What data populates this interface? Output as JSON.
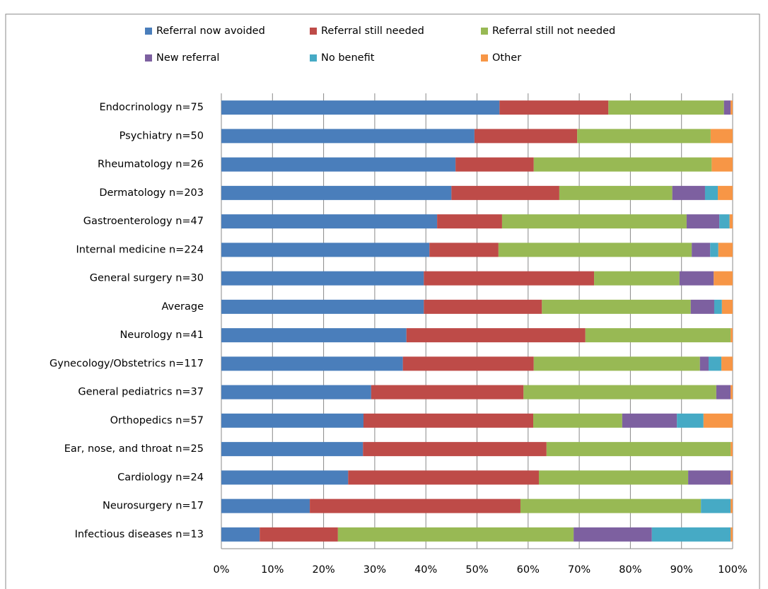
{
  "chart_data": {
    "type": "stacked-bar-horizontal",
    "categories": [
      "Endocrinology n=75",
      "Psychiatry n=50",
      "Rheumatology n=26",
      "Dermatology n=203",
      "Gastroenterology n=47",
      "Internal medicine n=224",
      "General surgery n=30",
      "Average",
      "Neurology n=41",
      "Gynecology/Obstetrics n=117",
      "General pediatrics n=37",
      "Orthopedics n=57",
      "Ear, nose, and throat n=25",
      "Cardiology n=24",
      "Neurosurgery n=17",
      "Infectious diseases n=13"
    ],
    "series": [
      {
        "name": "Referral now avoided",
        "color": "#4a7ebb",
        "values": [
          54.4,
          49.5,
          45.8,
          45.0,
          42.2,
          40.7,
          39.6,
          39.6,
          36.2,
          35.5,
          29.3,
          27.8,
          27.7,
          24.8,
          17.3,
          7.5
        ]
      },
      {
        "name": "Referral still needed",
        "color": "#be4b48",
        "values": [
          21.3,
          20.1,
          15.3,
          21.1,
          12.7,
          13.5,
          33.3,
          23.1,
          35.0,
          25.6,
          29.8,
          33.2,
          35.9,
          37.3,
          41.2,
          15.3
        ]
      },
      {
        "name": "Referral still not needed",
        "color": "#98b954",
        "values": [
          22.6,
          26.1,
          34.8,
          22.1,
          36.1,
          37.8,
          16.7,
          29.1,
          28.4,
          32.5,
          37.7,
          17.4,
          36.0,
          29.2,
          35.3,
          46.1
        ]
      },
      {
        "name": "New referral",
        "color": "#7d60a0",
        "values": [
          1.3,
          0,
          0,
          6.4,
          6.4,
          3.6,
          6.7,
          4.6,
          0,
          1.7,
          2.8,
          10.7,
          0,
          8.3,
          0,
          15.3
        ]
      },
      {
        "name": "No benefit",
        "color": "#46aac5",
        "values": [
          0,
          0,
          0,
          2.5,
          2.0,
          1.6,
          0,
          1.5,
          0,
          2.5,
          0,
          5.2,
          0,
          0,
          5.8,
          15.4
        ]
      },
      {
        "name": "Other",
        "color": "#f79646",
        "values": [
          0.4,
          4.3,
          4.1,
          2.9,
          0.6,
          2.8,
          3.7,
          2.1,
          0.4,
          2.2,
          0.4,
          5.7,
          0.4,
          0.4,
          0.4,
          0.4
        ]
      }
    ],
    "xlim": [
      0,
      100
    ],
    "xticks": [
      {
        "value": 0,
        "label": "0%"
      },
      {
        "value": 10,
        "label": "10%"
      },
      {
        "value": 20,
        "label": "20%"
      },
      {
        "value": 30,
        "label": "30%"
      },
      {
        "value": 40,
        "label": "40%"
      },
      {
        "value": 50,
        "label": "50%"
      },
      {
        "value": 60,
        "label": "60%"
      },
      {
        "value": 70,
        "label": "70%"
      },
      {
        "value": 80,
        "label": "80%"
      },
      {
        "value": 90,
        "label": "90%"
      },
      {
        "value": 100,
        "label": "100%"
      }
    ],
    "grid": true
  }
}
